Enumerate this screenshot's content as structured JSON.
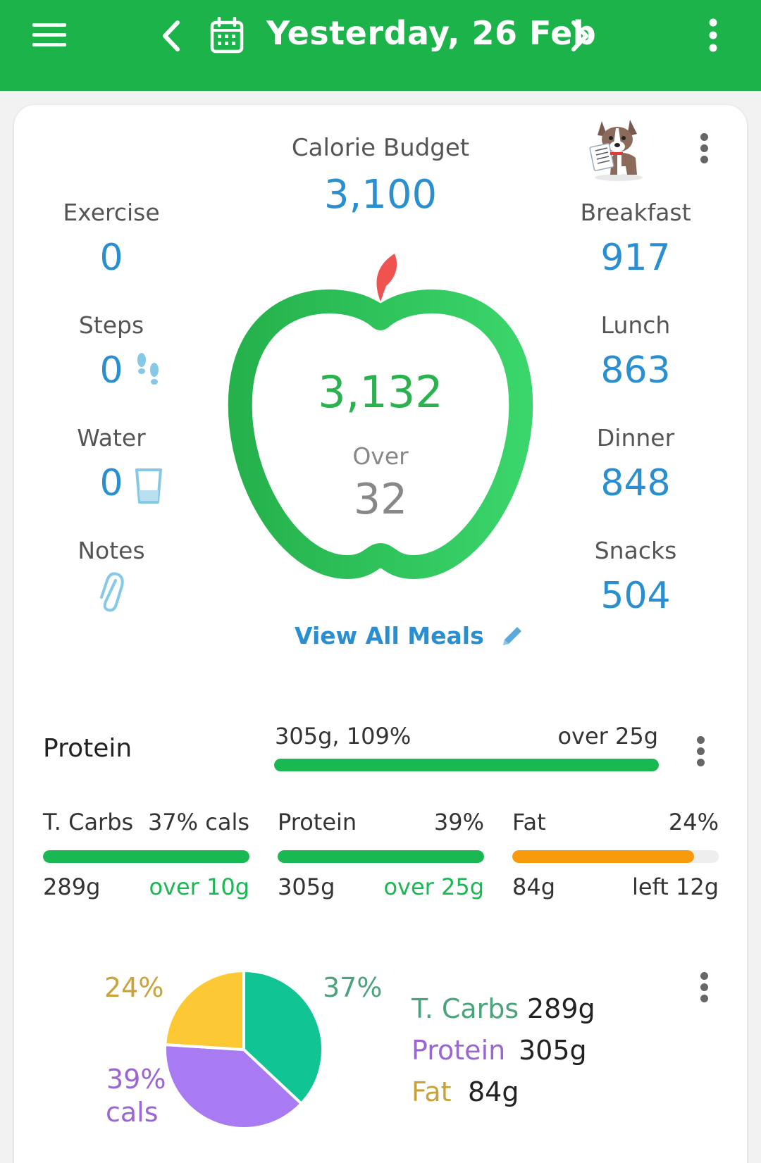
{
  "header": {
    "title": "Yesterday, 26 Feb",
    "icons": [
      "menu-icon",
      "chevron-left-icon",
      "calendar-icon",
      "chevron-right-icon",
      "more-vert-icon"
    ]
  },
  "colors": {
    "brand": "#1db34b",
    "value_blue": "#2a8fd0",
    "carbs": "#10c493",
    "protein": "#a87bf2",
    "fat": "#fcc834",
    "fat_bar": "#f79b0c"
  },
  "summary": {
    "budget_label": "Calorie Budget",
    "budget_value": "3,100",
    "consumed": "3,132",
    "status_label": "Over",
    "status_value": "32",
    "view_all": "View All Meals"
  },
  "left_stats": [
    {
      "label": "Exercise",
      "value": "0"
    },
    {
      "label": "Steps",
      "value": "0"
    },
    {
      "label": "Water",
      "value": "0"
    },
    {
      "label": "Notes",
      "value": ""
    }
  ],
  "meals": [
    {
      "label": "Breakfast",
      "value": "917"
    },
    {
      "label": "Lunch",
      "value": "863"
    },
    {
      "label": "Dinner",
      "value": "848"
    },
    {
      "label": "Snacks",
      "value": "504"
    }
  ],
  "protein_goal": {
    "label": "Protein",
    "amount": "305g, 109%",
    "status": "over 25g",
    "progress": 1.0
  },
  "macros": [
    {
      "name": "T. Carbs",
      "pct": "37% cals",
      "grams": "289g",
      "status": "over 10g",
      "progress": 1.0,
      "color": "#1ab853",
      "status_color": "#1ab853"
    },
    {
      "name": "Protein",
      "pct": "39%",
      "grams": "305g",
      "status": "over 25g",
      "progress": 1.0,
      "color": "#1ab853",
      "status_color": "#1ab853"
    },
    {
      "name": "Fat",
      "pct": "24%",
      "grams": "84g",
      "status": "left 12g",
      "progress": 0.88,
      "color": "#f79b0c",
      "status_color": "#333333"
    }
  ],
  "chart_data": {
    "type": "pie",
    "slices": [
      {
        "name": "T. Carbs",
        "value": 37,
        "label": "37%",
        "color": "#10c493"
      },
      {
        "name": "Protein",
        "value": 39,
        "label": "39%",
        "sublabel": "cals",
        "color": "#a87bf2"
      },
      {
        "name": "Fat",
        "value": 24,
        "label": "24%",
        "color": "#fcc834"
      }
    ],
    "legend": [
      {
        "name": "T. Carbs",
        "value": "289g",
        "color": "#4aa37b"
      },
      {
        "name": "Protein",
        "value": "305g",
        "color": "#9a66d4"
      },
      {
        "name": "Fat",
        "value": "84g",
        "color": "#c8a23a"
      }
    ]
  }
}
